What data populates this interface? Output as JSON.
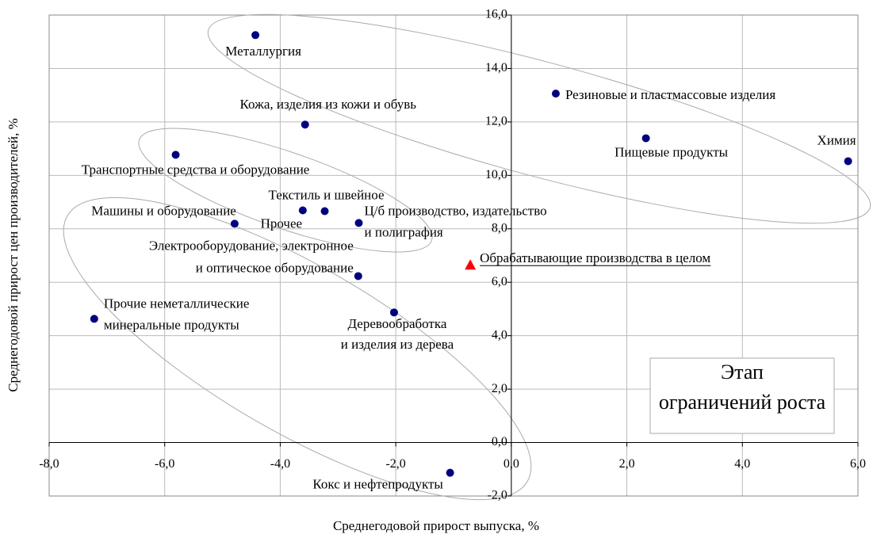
{
  "chart_data": {
    "type": "scatter",
    "x_label": "Среднегодовой прирост выпуска, %",
    "y_label": "Среднегодовой прирост цен производителей, %",
    "xlim": [
      -8,
      6
    ],
    "ylim": [
      -2,
      16
    ],
    "xticks": [
      {
        "value": -8,
        "label": "-8,0"
      },
      {
        "value": -6,
        "label": "-6,0"
      },
      {
        "value": -4,
        "label": "-4,0"
      },
      {
        "value": -2,
        "label": "-2,0"
      },
      {
        "value": 0,
        "label": "0,0"
      },
      {
        "value": 2,
        "label": "2,0"
      },
      {
        "value": 4,
        "label": "4,0"
      },
      {
        "value": 6,
        "label": "6,0"
      }
    ],
    "yticks": [
      {
        "value": -2,
        "label": "-2,0"
      },
      {
        "value": 0,
        "label": "0,0"
      },
      {
        "value": 2,
        "label": "2,0"
      },
      {
        "value": 4,
        "label": "4,0"
      },
      {
        "value": 6,
        "label": "6,0"
      },
      {
        "value": 8,
        "label": "8,0"
      },
      {
        "value": 10,
        "label": "10,0"
      },
      {
        "value": 12,
        "label": "12,0"
      },
      {
        "value": 14,
        "label": "14,0"
      },
      {
        "value": 16,
        "label": "16,0"
      }
    ],
    "grid": true,
    "annotation": [
      "Этап",
      "ограничений роста"
    ],
    "series": [
      {
        "color": "#000080",
        "marker": "circle",
        "x": [
          -4.43,
          -3.57,
          -5.81,
          0.77,
          2.33,
          5.83,
          -3.23,
          -3.61,
          -4.79,
          -2.64,
          -2.65,
          -7.22,
          -2.03,
          -1.06
        ],
        "y": [
          15.25,
          11.9,
          10.77,
          13.06,
          11.39,
          10.53,
          8.66,
          8.69,
          8.19,
          8.22,
          6.23,
          4.63,
          4.87,
          -1.13
        ],
        "labels": [
          [
            "Металлургия"
          ],
          [
            "Кожа, изделия из кожи и обувь"
          ],
          [
            "Транспортные средства и оборудование"
          ],
          [
            "Резиновые и пластмассовые изделия"
          ],
          [
            "Пищевые продукты"
          ],
          [
            "Химия"
          ],
          [
            "Текстиль и швейное"
          ],
          [
            "Прочее"
          ],
          [
            "Машины и оборудование"
          ],
          [
            "Ц/б производство, издательство",
            "и полиграфия"
          ],
          [
            "Электрооборудование, электронное",
            "и оптическое оборудование"
          ],
          [
            "Прочие неметаллические",
            "минеральные продукты"
          ],
          [
            "Деревообработка",
            "и изделия из дерева"
          ],
          [
            "Кокс и нефтепродукты"
          ]
        ]
      },
      {
        "color": "#ff0000",
        "marker": "triangle",
        "underline": true,
        "x": [
          -0.71
        ],
        "y": [
          6.65
        ],
        "labels": [
          [
            "Обрабатывающие производства в целом"
          ]
        ]
      }
    ]
  }
}
